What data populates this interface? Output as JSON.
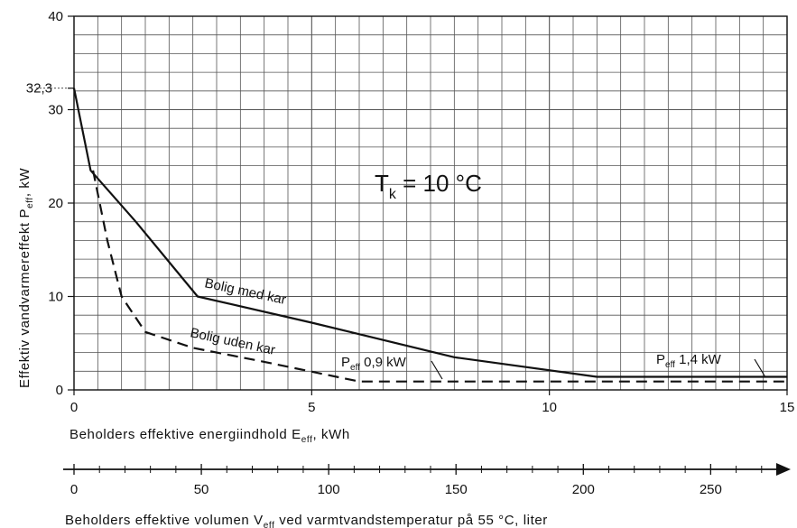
{
  "chart_data": {
    "type": "line",
    "ylabel": "Effektiv vandvarmereffekt P",
    "ylabel_sub": "eff",
    "ylabel_unit": ", kW",
    "xlabel": "Beholders effektive energiindhold E",
    "xlabel_sub": "eff",
    "xlabel_unit": ", kWh",
    "x2label_pre": "Beholders effektive volumen V",
    "x2label_sub": "eff",
    "x2label_post": " ved varmtvandstemperatur på 55 °C, liter",
    "xlim": [
      0,
      15
    ],
    "ylim": [
      0,
      40
    ],
    "x_ticks": [
      "0",
      "5",
      "10",
      "15"
    ],
    "y_ticks": [
      "0",
      "10",
      "20",
      "30",
      "40"
    ],
    "y_extra_tick": "32,3",
    "y_extra_value": 32.3,
    "x2lim": [
      0,
      280
    ],
    "x2_ticks": [
      "0",
      "50",
      "100",
      "150",
      "200",
      "250"
    ],
    "grid": true,
    "series": [
      {
        "name": "Bolig med kar",
        "style": "solid",
        "x": [
          0,
          0.35,
          1.3,
          2.6,
          5,
          8,
          11,
          15
        ],
        "y": [
          32.3,
          23.5,
          18,
          10,
          7.2,
          3.5,
          1.4,
          1.4
        ]
      },
      {
        "name": "Bolig uden kar",
        "style": "dashed",
        "x": [
          0.4,
          0.7,
          1.0,
          1.5,
          2.5,
          4,
          6,
          15
        ],
        "y": [
          23.5,
          16,
          10,
          6.2,
          4.5,
          3,
          0.9,
          0.9
        ]
      }
    ],
    "annotations": {
      "temp_main": "T",
      "temp_sub": "k",
      "temp_rest": " = 10 °C",
      "p1_main": "P",
      "p1_sub": "eff",
      "p1_rest": " 0,9 kW",
      "p2_main": "P",
      "p2_sub": "eff",
      "p2_rest": " 1,4 kW"
    }
  }
}
